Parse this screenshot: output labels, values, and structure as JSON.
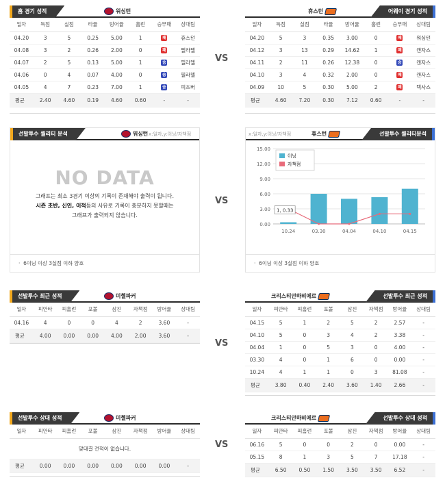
{
  "vs_label": "VS",
  "home_season": {
    "tag": "홈 경기 성적",
    "team": "워싱턴",
    "columns": [
      "일자",
      "득점",
      "실점",
      "타율",
      "방어율",
      "홈런",
      "승무패",
      "상대팀"
    ],
    "rows": [
      [
        "04.20",
        "3",
        "5",
        "0.25",
        "5.00",
        "1",
        "패",
        "휴스턴"
      ],
      [
        "04.08",
        "3",
        "2",
        "0.26",
        "2.00",
        "0",
        "패",
        "필라델"
      ],
      [
        "04.07",
        "2",
        "5",
        "0.13",
        "5.00",
        "1",
        "승",
        "필라델"
      ],
      [
        "04.06",
        "0",
        "4",
        "0.07",
        "4.00",
        "0",
        "승",
        "필라델"
      ],
      [
        "04.05",
        "4",
        "7",
        "0.23",
        "7.00",
        "1",
        "승",
        "피츠버"
      ]
    ],
    "avg": [
      "평균",
      "2.40",
      "4.60",
      "0.19",
      "4.60",
      "0.60",
      "-",
      "-"
    ]
  },
  "away_season": {
    "tag": "어웨이 경기 성적",
    "team": "휴스턴",
    "columns": [
      "일자",
      "득점",
      "실점",
      "타율",
      "방어율",
      "홈런",
      "승무패",
      "상대팀"
    ],
    "rows": [
      [
        "04.20",
        "5",
        "3",
        "0.35",
        "3.00",
        "0",
        "패",
        "워싱턴"
      ],
      [
        "04.12",
        "3",
        "13",
        "0.29",
        "14.62",
        "1",
        "패",
        "캔자스"
      ],
      [
        "04.11",
        "2",
        "11",
        "0.26",
        "12.38",
        "0",
        "승",
        "캔자스"
      ],
      [
        "04.10",
        "3",
        "4",
        "0.32",
        "2.00",
        "0",
        "패",
        "캔자스"
      ],
      [
        "04.09",
        "10",
        "5",
        "0.30",
        "5.00",
        "2",
        "패",
        "텍사스"
      ]
    ],
    "avg": [
      "평균",
      "4.60",
      "7.20",
      "0.30",
      "7.12",
      "0.60",
      "-",
      "-"
    ]
  },
  "quality_left": {
    "tag": "선발투수 퀄리티 분석",
    "team": "워싱턴",
    "axis_note": "x:일자,y:이닝/자책점",
    "nodata_title": "NO DATA",
    "line1": "그래프는 최소 3경기 이상의 기록이 존재해야 출력이 됩니다.",
    "line2_bold": "시즌 초반, 신인, 이적",
    "line2_rest": "등의 사유로 기록이 충분하지 못할때는",
    "line3": "그래프가 출력되지 않습니다.",
    "footer": "6이닝 이상 3실점 이하 양호"
  },
  "quality_right": {
    "tag": "선발투수 퀄리티분석",
    "team": "휴스턴",
    "axis_note": "x:일자,y:이닝/자책점",
    "footer": "6이닝 이상 3실점 이하 양호",
    "tooltip": "1, 0.33"
  },
  "chart_data": {
    "type": "bar",
    "categories": [
      "10.24",
      "03.30",
      "04.04",
      "04.10",
      "04.15"
    ],
    "series": [
      {
        "name": "이닝",
        "values": [
          0.33,
          6.0,
          5.0,
          5.33,
          7.0
        ],
        "color": "#4fb3d0"
      },
      {
        "name": "자책점",
        "values": [
          3,
          0,
          0,
          2,
          2
        ],
        "color": "#e86b7a"
      }
    ],
    "yticks": [
      "0.00",
      "3.00",
      "6.00",
      "9.00",
      "12.00",
      "15.00"
    ],
    "ylim": [
      0,
      15
    ],
    "legend": "top-left",
    "grid": true
  },
  "pitcher_recent_left": {
    "tag": "선발투수 최근 성적",
    "team": "미첼파커",
    "columns": [
      "일자",
      "피안타",
      "피홈런",
      "포볼",
      "삼진",
      "자책점",
      "방어율",
      "상대팀"
    ],
    "rows": [
      [
        "04.16",
        "4",
        "0",
        "0",
        "4",
        "2",
        "3.60",
        "-"
      ]
    ],
    "avg": [
      "평균",
      "4.00",
      "0.00",
      "0.00",
      "4.00",
      "2.00",
      "3.60",
      "-"
    ]
  },
  "pitcher_recent_right": {
    "tag": "선발투수 최근 성적",
    "team": "크리스티안하비에르",
    "columns": [
      "일자",
      "피안타",
      "피홈런",
      "포볼",
      "삼진",
      "자책점",
      "방어율",
      "상대팀"
    ],
    "rows": [
      [
        "04.15",
        "5",
        "1",
        "2",
        "5",
        "2",
        "2.57",
        "-"
      ],
      [
        "04.10",
        "5",
        "0",
        "3",
        "4",
        "2",
        "3.38",
        "-"
      ],
      [
        "04.04",
        "1",
        "0",
        "5",
        "3",
        "0",
        "4.00",
        "-"
      ],
      [
        "03.30",
        "4",
        "0",
        "1",
        "6",
        "0",
        "0.00",
        "-"
      ],
      [
        "10.24",
        "4",
        "1",
        "1",
        "0",
        "3",
        "81.08",
        "-"
      ]
    ],
    "avg": [
      "평균",
      "3.80",
      "0.40",
      "2.40",
      "3.60",
      "1.40",
      "2.66",
      "-"
    ]
  },
  "pitcher_vs_left": {
    "tag": "선발투수 상대 성적",
    "team": "미첼파커",
    "columns": [
      "일자",
      "피안타",
      "피홈런",
      "포볼",
      "삼진",
      "자책점",
      "방어율",
      "상대팀"
    ],
    "empty": "맞대결 전적이 없습니다.",
    "avg": [
      "평균",
      "0.00",
      "0.00",
      "0.00",
      "0.00",
      "0.00",
      "0.00",
      "-"
    ]
  },
  "pitcher_vs_right": {
    "tag": "선발투수 상대 성적",
    "team": "크리스티안하비에르",
    "columns": [
      "일자",
      "피안타",
      "피홈런",
      "포볼",
      "삼진",
      "자책점",
      "방어율",
      "상대팀"
    ],
    "rows": [
      [
        "06.16",
        "5",
        "0",
        "0",
        "2",
        "0",
        "0.00",
        "-"
      ],
      [
        "05.15",
        "8",
        "1",
        "3",
        "5",
        "7",
        "17.18",
        "-"
      ]
    ],
    "avg": [
      "평균",
      "6.50",
      "0.50",
      "1.50",
      "3.50",
      "3.50",
      "6.52",
      "-"
    ]
  }
}
